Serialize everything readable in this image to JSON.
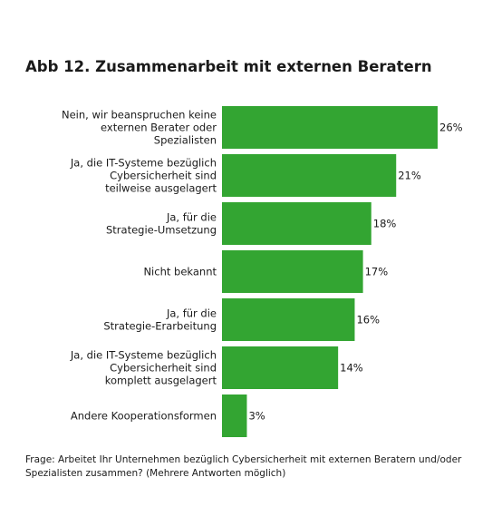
{
  "chart_data": {
    "type": "bar",
    "orientation": "horizontal",
    "title": "Abb 12. Zusammenarbeit mit externen Beratern",
    "categories": [
      "Nein, wir beanspruchen keine externen Berater oder Spezialisten",
      "Ja, die IT-Systeme bezüglich Cybersicherheit sind teilweise ausgelagert",
      "Ja, für die Strategie-Umsetzung",
      "Nicht bekannt",
      "Ja, für die Strategie-Erarbeitung",
      "Ja, die IT-Systeme bezüglich Cybersicherheit sind komplett ausgelagert",
      "Andere Kooperationsformen"
    ],
    "category_lines": [
      [
        "Nein, wir beanspruchen keine",
        "externen Berater oder",
        "Spezialisten"
      ],
      [
        "Ja, die IT-Systeme bezüglich",
        "Cybersicherheit sind",
        "teilweise ausgelagert"
      ],
      [
        "Ja, für die",
        "Strategie-Umsetzung"
      ],
      [
        "Nicht bekannt"
      ],
      [
        "Ja, für die",
        "Strategie-Erarbeitung"
      ],
      [
        "Ja, die IT-Systeme bezüglich",
        "Cybersicherheit sind",
        "komplett ausgelagert"
      ],
      [
        "Andere Kooperationsformen"
      ]
    ],
    "values": [
      26,
      21,
      18,
      17,
      16,
      14,
      3
    ],
    "value_labels": [
      "26%",
      "21%",
      "18%",
      "17%",
      "16%",
      "14%",
      "3%"
    ],
    "xlim": [
      0,
      26
    ],
    "unit": "%",
    "grid": false,
    "legend": "none",
    "bar_color": "#33a532"
  },
  "footnote": "Frage: Arbeitet Ihr Unternehmen bezüglich Cybersicherheit mit externen Beratern und/oder Spezialisten zusammen? (Mehrere Antworten möglich)"
}
